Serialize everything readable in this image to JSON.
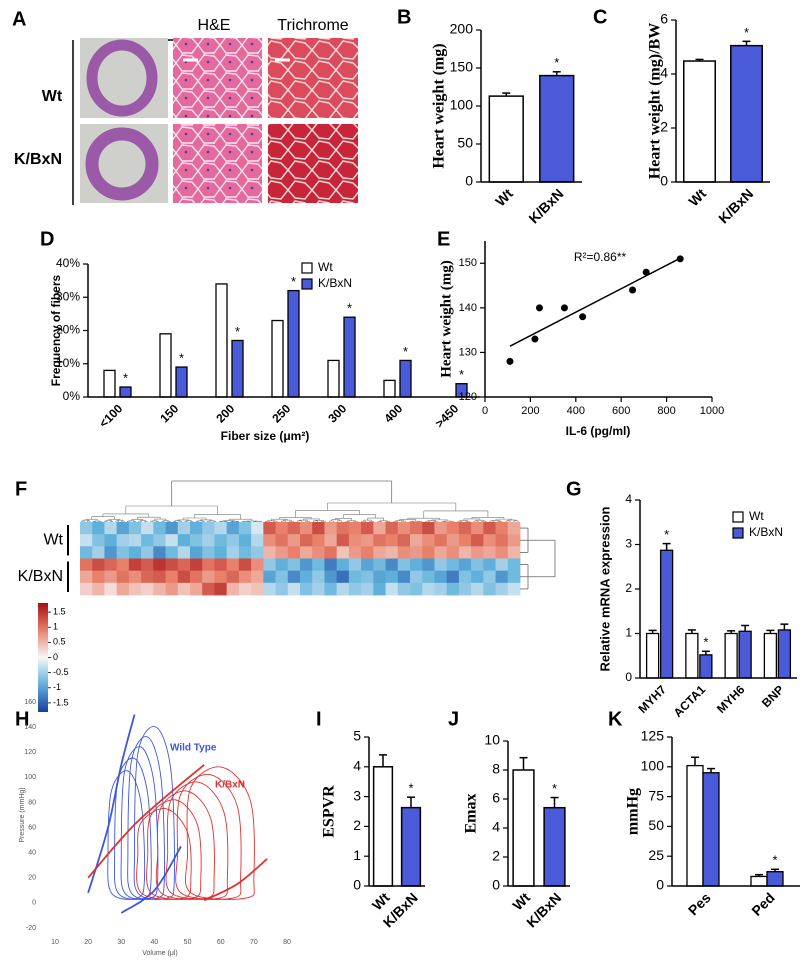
{
  "panel_a": {
    "label": "A",
    "columns": [
      "H&E",
      "Trichrome"
    ],
    "rows": [
      "Wt",
      "K/BxN"
    ]
  },
  "chart_data": [
    {
      "panel": "B",
      "type": "bar",
      "categories": [
        "Wt",
        "K/BxN"
      ],
      "values": [
        113,
        140
      ],
      "errors": [
        4,
        5
      ],
      "significance": [
        null,
        "*"
      ],
      "colors": [
        "#ffffff",
        "#4a5ad8"
      ],
      "y_label": "Heart weight (mg)",
      "ylim": [
        0,
        200
      ],
      "yticks": [
        0,
        50,
        100,
        150,
        200
      ]
    },
    {
      "panel": "C",
      "type": "bar",
      "categories": [
        "Wt",
        "K/BxN"
      ],
      "values": [
        4.48,
        5.05
      ],
      "errors": [
        0.06,
        0.16
      ],
      "significance": [
        null,
        "*"
      ],
      "colors": [
        "#ffffff",
        "#4a5ad8"
      ],
      "y_label": "Heart weight (mg)/BW",
      "ylim": [
        0,
        6
      ],
      "yticks": [
        0,
        2,
        4,
        6
      ]
    },
    {
      "panel": "D",
      "type": "grouped_bar",
      "categories": [
        "<100",
        "150",
        "200",
        "250",
        "300",
        "400",
        ">450"
      ],
      "series": [
        {
          "name": "Wt",
          "color": "#ffffff",
          "values": [
            8,
            19,
            34,
            23,
            11,
            5,
            0
          ]
        },
        {
          "name": "K/BxN",
          "color": "#4a5ad8",
          "values": [
            3,
            9,
            17,
            32,
            24,
            11,
            4
          ],
          "significance": [
            "*",
            "*",
            "*",
            "*",
            "*",
            "*",
            "*"
          ]
        }
      ],
      "ylim": [
        0,
        40
      ],
      "yticks": [
        {
          "value": 0,
          "label": "0%"
        },
        {
          "value": 10,
          "label": "10%"
        },
        {
          "value": 20,
          "label": "20%"
        },
        {
          "value": 30,
          "label": "30%"
        },
        {
          "value": 40,
          "label": "40%"
        }
      ],
      "y_label": "Frequency of fibers",
      "x_label": "Fiber size (μm²)",
      "legend": true
    },
    {
      "panel": "E",
      "type": "scatter",
      "x": [
        110,
        220,
        240,
        350,
        430,
        650,
        710,
        860
      ],
      "y": [
        128,
        133,
        140,
        140,
        138,
        144,
        148,
        151
      ],
      "color": "#000000",
      "trendline": true,
      "annotation": "R²=0.86**",
      "x_label": "IL-6 (pg/ml)",
      "y_label": "Heart weight (mg)",
      "xlim": [
        0,
        1000
      ],
      "xticks": [
        0,
        200,
        400,
        600,
        800,
        1000
      ],
      "ylim": [
        120,
        155
      ],
      "yticks": [
        120,
        130,
        140,
        150
      ]
    },
    {
      "panel": "F",
      "type": "heatmap",
      "groups": [
        {
          "name": "Wt",
          "values": [
            [
              -0.6,
              -0.9,
              -0.4,
              -1.0,
              -0.7,
              -0.3,
              -0.8,
              -1.1,
              -0.5,
              -0.9,
              -0.6,
              -0.4,
              -1.0,
              -0.7,
              -0.2,
              1.2,
              0.9,
              1.1,
              0.8,
              1.3,
              0.7,
              1.0,
              0.9,
              1.2,
              0.6,
              1.1,
              0.8,
              1.0,
              1.3,
              0.7,
              0.9,
              1.1,
              0.8,
              1.2,
              0.9,
              0.6
            ],
            [
              -0.3,
              -0.7,
              -0.9,
              -0.5,
              -0.4,
              -0.8,
              -0.6,
              -0.3,
              -0.9,
              -0.7,
              -0.5,
              -0.8,
              -0.6,
              -0.9,
              -0.4,
              0.8,
              1.0,
              0.7,
              1.1,
              0.9,
              0.6,
              1.2,
              0.8,
              0.7,
              1.0,
              0.9,
              1.1,
              0.6,
              0.8,
              1.0,
              0.7,
              0.9,
              1.2,
              0.8,
              1.0,
              0.7
            ],
            [
              -0.8,
              -0.5,
              -1.1,
              -0.7,
              -0.9,
              -0.6,
              -1.2,
              -0.8,
              -0.4,
              -1.0,
              -0.7,
              -0.9,
              -0.5,
              -0.8,
              -0.6,
              0.5,
              0.7,
              0.9,
              0.6,
              0.8,
              1.0,
              0.4,
              0.7,
              0.9,
              0.6,
              0.5,
              0.8,
              0.7,
              0.9,
              0.6,
              0.8,
              0.5,
              0.7,
              0.6,
              0.8,
              0.5
            ]
          ]
        },
        {
          "name": "K/BxN",
          "values": [
            [
              1.0,
              1.3,
              1.1,
              0.9,
              1.4,
              1.2,
              1.5,
              1.3,
              1.1,
              1.4,
              1.0,
              1.2,
              0.9,
              1.3,
              0.8,
              -0.6,
              -0.9,
              -0.7,
              -1.1,
              -0.8,
              -1.3,
              -0.9,
              -0.6,
              -1.0,
              -0.8,
              -1.2,
              -0.7,
              -0.9,
              -1.1,
              -0.6,
              -0.8,
              -1.0,
              -0.7,
              -0.9,
              -0.5,
              -0.8
            ],
            [
              0.6,
              0.9,
              0.7,
              1.0,
              0.8,
              1.1,
              1.2,
              0.9,
              1.3,
              1.0,
              0.7,
              0.9,
              1.1,
              0.8,
              0.6,
              -1.0,
              -0.7,
              -1.2,
              -0.9,
              -0.6,
              -1.1,
              -1.4,
              -0.8,
              -0.7,
              -1.0,
              -0.9,
              -1.2,
              -0.6,
              -0.8,
              -1.0,
              -1.3,
              -0.7,
              -0.9,
              -0.6,
              -1.1,
              -0.8
            ],
            [
              0.3,
              0.5,
              0.2,
              0.6,
              0.4,
              0.3,
              0.5,
              0.7,
              0.4,
              0.6,
              1.2,
              1.4,
              0.5,
              0.3,
              0.4,
              -0.4,
              -0.6,
              -0.3,
              -0.7,
              -0.5,
              -0.8,
              -0.4,
              -0.6,
              -0.5,
              -0.9,
              -0.3,
              -0.6,
              -0.7,
              -0.4,
              -0.5,
              -0.8,
              -0.6,
              -0.4,
              -0.7,
              -0.5,
              -0.3
            ]
          ]
        }
      ],
      "clim": [
        -1.8,
        1.8
      ],
      "colorbar_ticks": [
        1.5,
        1,
        0.5,
        0,
        -0.5,
        -1,
        -1.5
      ]
    },
    {
      "panel": "G",
      "type": "grouped_bar",
      "categories": [
        "MYH7",
        "ACTA1",
        "MYH6",
        "BNP"
      ],
      "series": [
        {
          "name": "Wt",
          "color": "#ffffff",
          "values": [
            1,
            1,
            1,
            1
          ],
          "errors": [
            0.07,
            0.08,
            0.06,
            0.07
          ]
        },
        {
          "name": "K/BxN",
          "color": "#4a5ad8",
          "values": [
            2.87,
            0.52,
            1.05,
            1.08
          ],
          "errors": [
            0.15,
            0.08,
            0.13,
            0.13
          ],
          "significance": [
            "*",
            "*",
            null,
            null
          ]
        }
      ],
      "ylim": [
        0,
        4
      ],
      "yticks": [
        0,
        1,
        2,
        3,
        4
      ],
      "y_label": "Relative mRNA expression",
      "legend": true
    },
    {
      "panel": "H",
      "type": "pv_loops",
      "groups": [
        {
          "name": "Wild Type",
          "color": "#3d55e0",
          "loops": [
            {
              "x": [
                27,
                35,
                37,
                36,
                32,
                27,
                26
              ],
              "y": [
                8,
                4,
                20,
                79,
                105,
                89,
                40
              ]
            },
            {
              "x": [
                29,
                37,
                39,
                38,
                34,
                29,
                28
              ],
              "y": [
                8,
                4,
                20,
                86,
                115,
                98,
                40
              ]
            },
            {
              "x": [
                31,
                39,
                41,
                40,
                36,
                31,
                30
              ],
              "y": [
                8,
                4,
                20,
                93,
                124,
                105,
                40
              ]
            },
            {
              "x": [
                33,
                41,
                43,
                42,
                38,
                33,
                32
              ],
              "y": [
                8,
                4,
                20,
                99,
                132,
                112,
                40
              ]
            },
            {
              "x": [
                35,
                44,
                46,
                45,
                40.5,
                35,
                34
              ],
              "y": [
                8,
                4,
                20,
                105,
                140,
                119,
                40
              ]
            }
          ],
          "relations": [
            {
              "x": [
                20,
                26,
                30,
                34
              ],
              "y": [
                8,
                60,
                110,
                150
              ]
            },
            {
              "x": [
                30,
                40,
                48
              ],
              "y": [
                -8,
                10,
                45
              ]
            }
          ]
        },
        {
          "name": "K/BxN",
          "color": "#e03030",
          "loops": [
            {
              "x": [
                36,
                49,
                51,
                50,
                43.5,
                36,
                35
              ],
              "y": [
                8,
                4,
                20,
                56,
                75,
                64,
                40
              ]
            },
            {
              "x": [
                39,
                52,
                54,
                53,
                46.5,
                39,
                38
              ],
              "y": [
                8,
                4,
                20,
                62,
                82,
                70,
                40
              ]
            },
            {
              "x": [
                42,
                56,
                58,
                57,
                50,
                42,
                41
              ],
              "y": [
                8,
                4,
                20,
                67,
                89,
                76,
                40
              ]
            },
            {
              "x": [
                45,
                60,
                62,
                61,
                53.5,
                45,
                44
              ],
              "y": [
                8,
                4,
                20,
                72,
                96,
                82,
                40
              ]
            },
            {
              "x": [
                48,
                64,
                66,
                65,
                57,
                48,
                47
              ],
              "y": [
                8,
                4,
                20,
                77,
                102,
                87,
                40
              ]
            },
            {
              "x": [
                51,
                68,
                70,
                69,
                60.5,
                51,
                50
              ],
              "y": [
                8,
                4,
                20,
                81,
                108,
                92,
                40
              ]
            }
          ],
          "relations": [
            {
              "x": [
                20,
                35,
                55
              ],
              "y": [
                20,
                65,
                110
              ]
            },
            {
              "x": [
                55,
                65,
                74
              ],
              "y": [
                2,
                15,
                35
              ]
            }
          ]
        }
      ],
      "xlim": [
        10,
        80
      ],
      "xticks": [
        10,
        20,
        30,
        40,
        50,
        60,
        70,
        80
      ],
      "ylim": [
        -20,
        160
      ],
      "yticks": [
        -20,
        0,
        20,
        40,
        60,
        80,
        100,
        120,
        140,
        160
      ],
      "x_label": "Volume (μl)",
      "y_label": "Pressure (mmHg)"
    },
    {
      "panel": "I",
      "type": "bar",
      "categories": [
        "Wt",
        "K/BxN"
      ],
      "values": [
        4.0,
        2.63
      ],
      "errors": [
        0.4,
        0.35
      ],
      "significance": [
        null,
        "*"
      ],
      "colors": [
        "#ffffff",
        "#4a5ad8"
      ],
      "y_label": "ESPVR",
      "ylim": [
        0,
        5
      ],
      "yticks": [
        0,
        1,
        2,
        3,
        4,
        5
      ]
    },
    {
      "panel": "J",
      "type": "bar",
      "categories": [
        "Wt",
        "K/BxN"
      ],
      "values": [
        8.0,
        5.4
      ],
      "errors": [
        0.85,
        0.7
      ],
      "significance": [
        null,
        "*"
      ],
      "colors": [
        "#ffffff",
        "#4a5ad8"
      ],
      "y_label": "Emax",
      "ylim": [
        0,
        10
      ],
      "yticks": [
        0,
        2,
        4,
        6,
        8,
        10
      ]
    },
    {
      "panel": "K",
      "type": "grouped_bar",
      "categories": [
        "Pes",
        "Ped"
      ],
      "series": [
        {
          "name": "Wt",
          "color": "#ffffff",
          "values": [
            101,
            8
          ],
          "errors": [
            7,
            1.5
          ]
        },
        {
          "name": "K/BxN",
          "color": "#4a5ad8",
          "values": [
            95,
            12
          ],
          "errors": [
            3.5,
            2
          ],
          "significance": [
            null,
            "*"
          ]
        }
      ],
      "ylim": [
        0,
        125
      ],
      "yticks": [
        0,
        25,
        50,
        75,
        100,
        125
      ],
      "y_label": "mmHg"
    }
  ]
}
